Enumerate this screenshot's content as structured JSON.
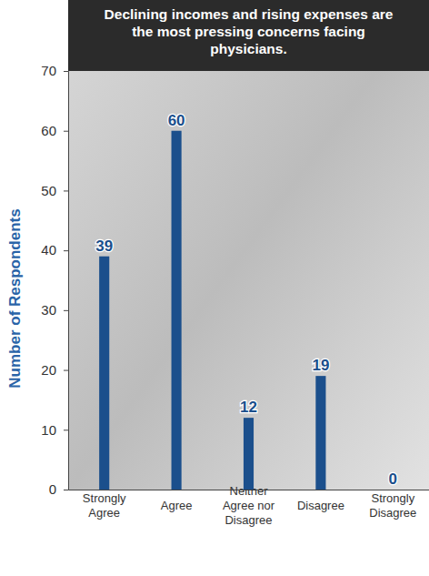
{
  "chart_data": {
    "type": "bar",
    "title": "Declining incomes and rising expenses are the most pressing concerns facing physicians.",
    "y_label": "Number of Respondents",
    "categories": [
      "Strongly Agree",
      "Agree",
      "Neither Agree nor Disagree",
      "Disagree",
      "Strongly Disagree"
    ],
    "values": [
      39,
      60,
      12,
      19,
      0
    ],
    "color": "#1b4f8c",
    "ylim": [
      0,
      70
    ],
    "yticks": [
      0,
      10,
      20,
      30,
      40,
      50,
      60,
      70
    ],
    "data_labels": true,
    "grid": false
  }
}
